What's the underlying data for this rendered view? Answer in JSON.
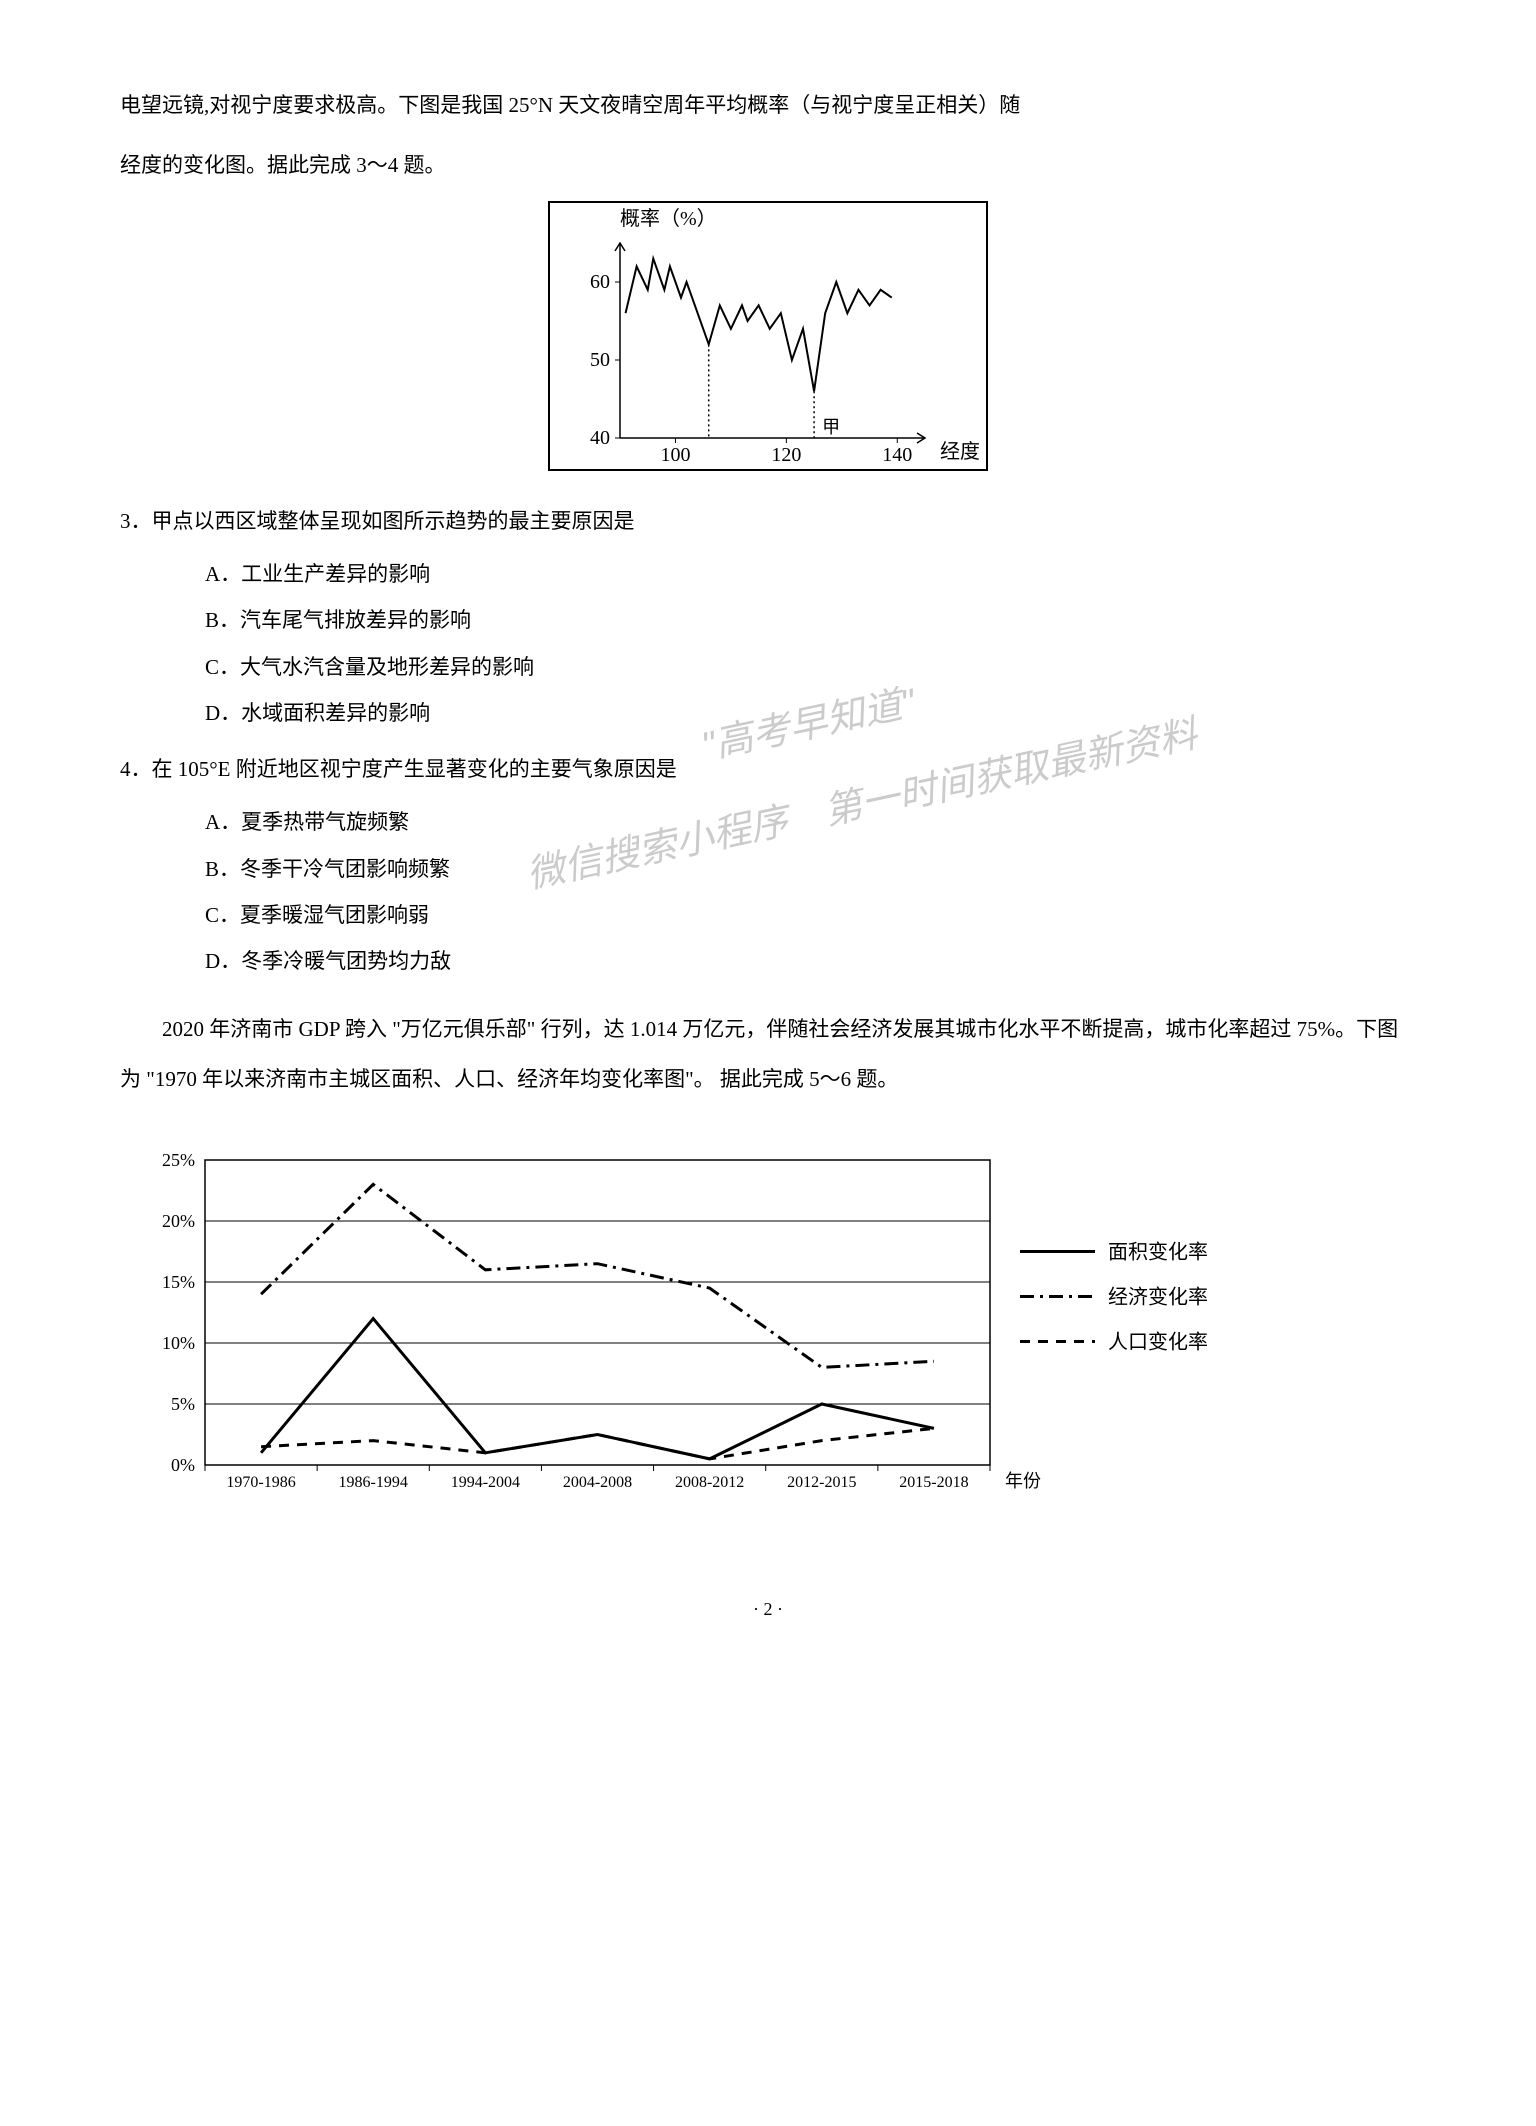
{
  "intro": {
    "line1": "电望远镜,对视宁度要求极高。下图是我国 25°N 天文夜晴空周年平均概率（与视宁度呈正相关）随",
    "line2": "经度的变化图。据此完成 3～4 题。"
  },
  "chart1": {
    "type": "line",
    "y_label": "概率（%）",
    "x_label": "经度",
    "mark_label": "甲",
    "xlim": [
      90,
      145
    ],
    "ylim": [
      40,
      65
    ],
    "x_ticks": [
      100,
      120,
      140
    ],
    "y_ticks": [
      40,
      50,
      60
    ],
    "axis_color": "#000000",
    "line_color": "#000000",
    "dotted_color": "#000000",
    "background_color": "#ffffff",
    "label_fontsize": 20,
    "dotted_x": [
      106,
      125
    ],
    "series": [
      {
        "x": 91,
        "y": 56
      },
      {
        "x": 93,
        "y": 62
      },
      {
        "x": 95,
        "y": 59
      },
      {
        "x": 96,
        "y": 63
      },
      {
        "x": 98,
        "y": 59
      },
      {
        "x": 99,
        "y": 62
      },
      {
        "x": 101,
        "y": 58
      },
      {
        "x": 102,
        "y": 60
      },
      {
        "x": 104,
        "y": 56
      },
      {
        "x": 106,
        "y": 52
      },
      {
        "x": 108,
        "y": 57
      },
      {
        "x": 110,
        "y": 54
      },
      {
        "x": 112,
        "y": 57
      },
      {
        "x": 113,
        "y": 55
      },
      {
        "x": 115,
        "y": 57
      },
      {
        "x": 117,
        "y": 54
      },
      {
        "x": 119,
        "y": 56
      },
      {
        "x": 121,
        "y": 50
      },
      {
        "x": 123,
        "y": 54
      },
      {
        "x": 125,
        "y": 46
      },
      {
        "x": 127,
        "y": 56
      },
      {
        "x": 129,
        "y": 60
      },
      {
        "x": 131,
        "y": 56
      },
      {
        "x": 133,
        "y": 59
      },
      {
        "x": 135,
        "y": 57
      },
      {
        "x": 137,
        "y": 59
      },
      {
        "x": 139,
        "y": 58
      }
    ]
  },
  "q3": {
    "stem": "3．甲点以西区域整体呈现如图所示趋势的最主要原因是",
    "A": "A．工业生产差异的影响",
    "B": "B．汽车尾气排放差异的影响",
    "C": "C．大气水汽含量及地形差异的影响",
    "D": "D．水域面积差异的影响"
  },
  "q4": {
    "stem": "4．在 105°E 附近地区视宁度产生显著变化的主要气象原因是",
    "A": "A．夏季热带气旋频繁",
    "B": "B．冬季干冷气团影响频繁",
    "C": "C．夏季暖湿气团影响弱",
    "D": "D．冬季冷暖气团势均力敌"
  },
  "passage2": {
    "text": "2020 年济南市 GDP 跨入 \"万亿元俱乐部\" 行列，达 1.014 万亿元，伴随社会经济发展其城市化水平不断提高，城市化率超过 75%。下图为 \"1970 年以来济南市主城区面积、人口、经济年均变化率图\"。 据此完成 5～6 题。"
  },
  "chart2": {
    "type": "line",
    "ylim": [
      0,
      25
    ],
    "y_ticks": [
      0,
      5,
      10,
      15,
      20,
      25
    ],
    "y_tick_suffix": "%",
    "x_labels": [
      "1970-1986",
      "1986-1994",
      "1994-2004",
      "2004-2008",
      "2008-2012",
      "2012-2015",
      "2015-2018"
    ],
    "x_axis_label": "年份",
    "background_color": "#ffffff",
    "axis_color": "#000000",
    "tick_fontsize": 18,
    "legend": {
      "area": "面积变化率",
      "econ": "经济变化率",
      "pop": "人口变化率"
    },
    "series": {
      "area": {
        "values": [
          1,
          12,
          1,
          2.5,
          0.5,
          5,
          3
        ],
        "color": "#000000",
        "style": "solid"
      },
      "econ": {
        "values": [
          14,
          23,
          16,
          16.5,
          14.5,
          8,
          8.5
        ],
        "color": "#000000",
        "style": "dashdot"
      },
      "pop": {
        "values": [
          1.5,
          2,
          1,
          2.5,
          0.5,
          2,
          3
        ],
        "color": "#000000",
        "style": "dashed"
      }
    }
  },
  "watermark": {
    "wm1": "\"高考早知道\"",
    "wm2": "微信搜索小程序　第一时间获取最新资料"
  },
  "page_number": "· 2 ·"
}
